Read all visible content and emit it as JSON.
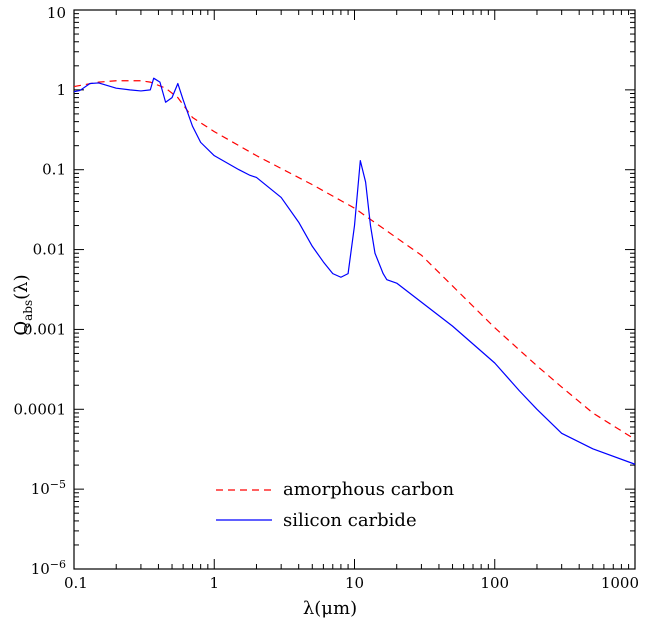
{
  "chart_data": {
    "type": "line",
    "title": "",
    "xlabel": "λ(μm)",
    "ylabel": "Q_abs(λ)",
    "xscale": "log",
    "yscale": "log",
    "xlim": [
      0.1,
      1000
    ],
    "ylim": [
      1e-06,
      10
    ],
    "grid": false,
    "legend_position": "bottom-center",
    "x_tick_labels": [
      "0.1",
      "1",
      "10",
      "100",
      "1000"
    ],
    "y_tick_labels": [
      {
        "value": 10,
        "text": "10"
      },
      {
        "value": 1,
        "text": "1"
      },
      {
        "value": 0.1,
        "text": "0.1"
      },
      {
        "value": 0.01,
        "text": "0.01"
      },
      {
        "value": 0.001,
        "text": "0.001"
      },
      {
        "value": 0.0001,
        "text": "0.0001"
      },
      {
        "value": 1e-05,
        "base": "10",
        "exp": "−5"
      },
      {
        "value": 1e-06,
        "base": "10",
        "exp": "−6"
      }
    ],
    "series": [
      {
        "name": "amorphous carbon",
        "color": "#ff0000",
        "style": "dashed",
        "points": [
          [
            0.1,
            1.1
          ],
          [
            0.15,
            1.25
          ],
          [
            0.2,
            1.3
          ],
          [
            0.3,
            1.3
          ],
          [
            0.35,
            1.25
          ],
          [
            0.45,
            1.05
          ],
          [
            0.55,
            0.8
          ],
          [
            0.7,
            0.45
          ],
          [
            1.0,
            0.3
          ],
          [
            2.0,
            0.15
          ],
          [
            5.0,
            0.065
          ],
          [
            10.0,
            0.033
          ],
          [
            20.0,
            0.014
          ],
          [
            30.0,
            0.0085
          ],
          [
            50.0,
            0.0035
          ],
          [
            100.0,
            0.00105
          ],
          [
            200.0,
            0.00035
          ],
          [
            300.0,
            0.00019
          ],
          [
            500.0,
            9e-05
          ],
          [
            1000.0,
            4.2e-05
          ]
        ]
      },
      {
        "name": "silicon carbide",
        "color": "#0000ff",
        "style": "solid",
        "points": [
          [
            0.1,
            0.95
          ],
          [
            0.11,
            0.98
          ],
          [
            0.13,
            1.2
          ],
          [
            0.15,
            1.22
          ],
          [
            0.2,
            1.05
          ],
          [
            0.25,
            1.0
          ],
          [
            0.3,
            0.97
          ],
          [
            0.35,
            1.0
          ],
          [
            0.37,
            1.4
          ],
          [
            0.41,
            1.25
          ],
          [
            0.45,
            0.7
          ],
          [
            0.5,
            0.8
          ],
          [
            0.55,
            1.2
          ],
          [
            0.6,
            0.75
          ],
          [
            0.7,
            0.35
          ],
          [
            0.8,
            0.22
          ],
          [
            1.0,
            0.15
          ],
          [
            1.5,
            0.1
          ],
          [
            1.8,
            0.085
          ],
          [
            2.0,
            0.08
          ],
          [
            3.0,
            0.045
          ],
          [
            4.0,
            0.022
          ],
          [
            5.0,
            0.011
          ],
          [
            6.0,
            0.007
          ],
          [
            7.0,
            0.005
          ],
          [
            8.0,
            0.0045
          ],
          [
            9.0,
            0.005
          ],
          [
            10.0,
            0.02
          ],
          [
            11.0,
            0.13
          ],
          [
            12.0,
            0.07
          ],
          [
            13.0,
            0.02
          ],
          [
            14.0,
            0.009
          ],
          [
            16.0,
            0.005
          ],
          [
            17.0,
            0.0042
          ],
          [
            20.0,
            0.0038
          ],
          [
            50.0,
            0.0011
          ],
          [
            100.0,
            0.00038
          ],
          [
            150.0,
            0.00017
          ],
          [
            200.0,
            0.0001
          ],
          [
            300.0,
            5e-05
          ],
          [
            500.0,
            3.2e-05
          ],
          [
            1000.0,
            2.05e-05
          ]
        ]
      }
    ]
  }
}
